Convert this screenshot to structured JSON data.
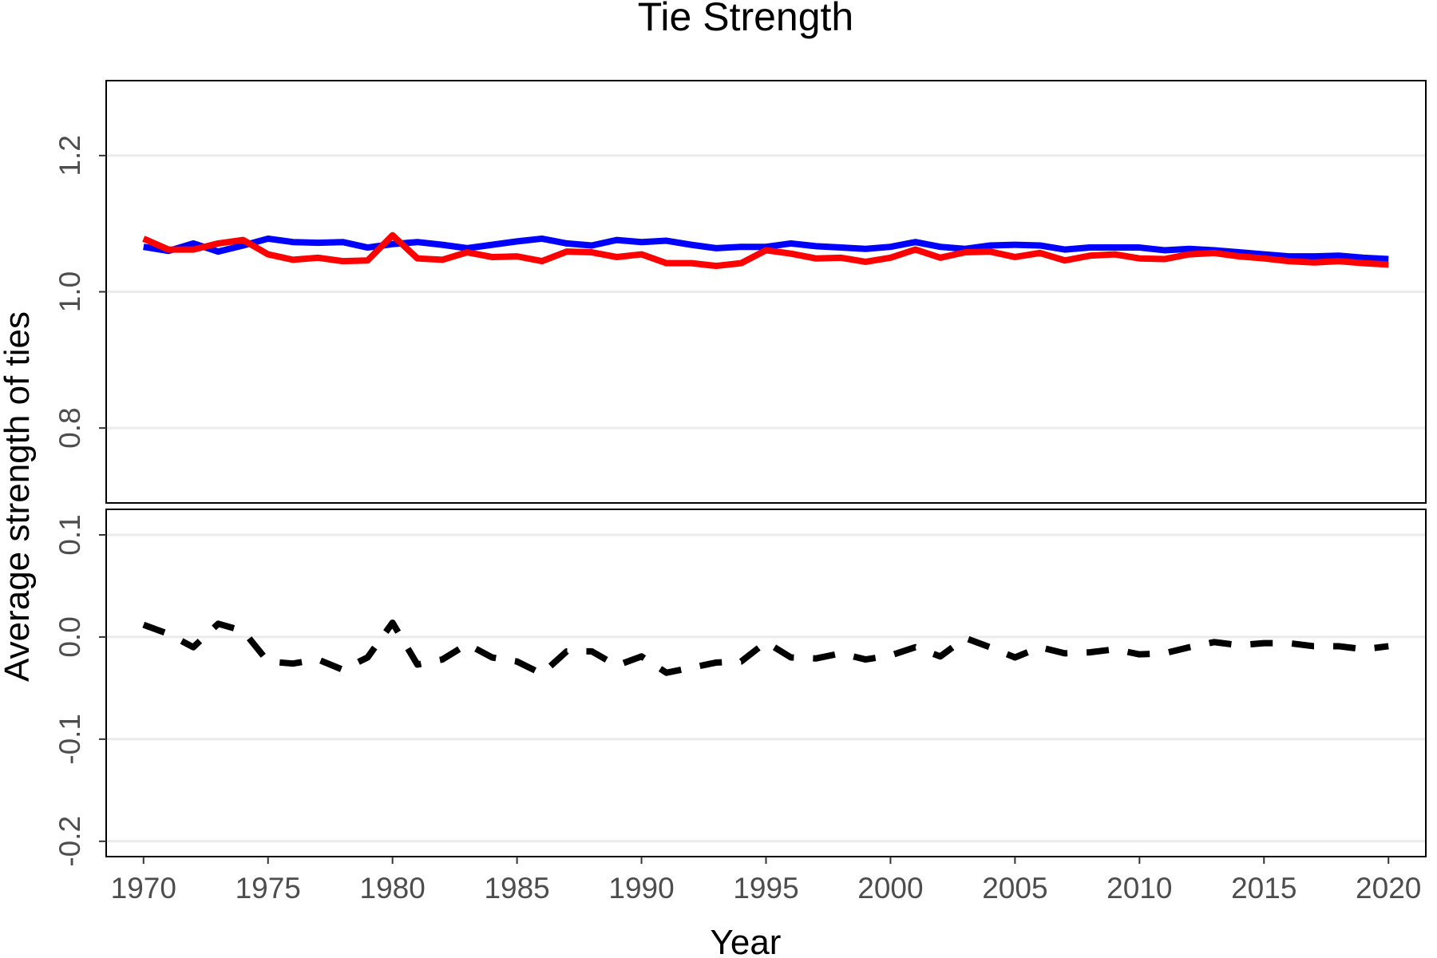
{
  "chart_data": {
    "type": "line",
    "title": "Tie Strength",
    "xlabel": "Year",
    "ylabel": "Average strength of ties",
    "x_ticks": [
      "1970",
      "1975",
      "1980",
      "1985",
      "1990",
      "1995",
      "2000",
      "2005",
      "2010",
      "2015",
      "2020"
    ],
    "xlim": [
      1968.5,
      2021.5
    ],
    "panels": [
      {
        "name": "top",
        "ylim": [
          0.69,
          1.31
        ],
        "y_ticks": [
          "0.8",
          "1.0",
          "1.2"
        ],
        "y_tick_values": [
          0.8,
          1.0,
          1.2
        ],
        "grid": true
      },
      {
        "name": "bottom",
        "ylim": [
          -0.215,
          0.125
        ],
        "y_ticks": [
          "-0.2",
          "-0.1",
          "0.0",
          "0.1"
        ],
        "y_tick_values": [
          -0.2,
          -0.1,
          0.0,
          0.1
        ],
        "grid": true
      }
    ],
    "x": [
      1970,
      1971,
      1972,
      1973,
      1974,
      1975,
      1976,
      1977,
      1978,
      1979,
      1980,
      1981,
      1982,
      1983,
      1984,
      1985,
      1986,
      1987,
      1988,
      1989,
      1990,
      1991,
      1992,
      1993,
      1994,
      1995,
      1996,
      1997,
      1998,
      1999,
      2000,
      2001,
      2002,
      2003,
      2004,
      2005,
      2006,
      2007,
      2008,
      2009,
      2010,
      2011,
      2012,
      2013,
      2014,
      2015,
      2016,
      2017,
      2018,
      2019,
      2020
    ],
    "series": [
      {
        "panel": "top",
        "color": "#0000ff",
        "dash": "solid",
        "values": [
          1.066,
          1.06,
          1.071,
          1.059,
          1.068,
          1.078,
          1.073,
          1.072,
          1.073,
          1.065,
          1.07,
          1.073,
          1.069,
          1.064,
          1.069,
          1.074,
          1.078,
          1.071,
          1.068,
          1.076,
          1.073,
          1.075,
          1.069,
          1.064,
          1.066,
          1.066,
          1.071,
          1.067,
          1.065,
          1.063,
          1.066,
          1.073,
          1.066,
          1.063,
          1.068,
          1.069,
          1.068,
          1.062,
          1.065,
          1.065,
          1.065,
          1.061,
          1.063,
          1.061,
          1.058,
          1.055,
          1.052,
          1.052,
          1.053,
          1.05,
          1.048
        ]
      },
      {
        "panel": "top",
        "color": "#ff0000",
        "dash": "solid",
        "values": [
          1.078,
          1.062,
          1.062,
          1.071,
          1.076,
          1.055,
          1.047,
          1.05,
          1.045,
          1.046,
          1.083,
          1.049,
          1.047,
          1.058,
          1.051,
          1.052,
          1.045,
          1.059,
          1.058,
          1.051,
          1.055,
          1.042,
          1.042,
          1.038,
          1.042,
          1.061,
          1.056,
          1.049,
          1.05,
          1.044,
          1.05,
          1.062,
          1.05,
          1.058,
          1.059,
          1.051,
          1.057,
          1.046,
          1.053,
          1.055,
          1.049,
          1.048,
          1.055,
          1.057,
          1.052,
          1.049,
          1.045,
          1.043,
          1.045,
          1.042,
          1.04
        ]
      },
      {
        "panel": "bottom",
        "color": "#000000",
        "dash": "dashed",
        "values": [
          0.012,
          0.003,
          -0.01,
          0.013,
          0.006,
          -0.024,
          -0.026,
          -0.022,
          -0.032,
          -0.02,
          0.014,
          -0.027,
          -0.022,
          -0.007,
          -0.02,
          -0.024,
          -0.036,
          -0.014,
          -0.014,
          -0.028,
          -0.019,
          -0.035,
          -0.03,
          -0.025,
          -0.024,
          -0.005,
          -0.02,
          -0.021,
          -0.016,
          -0.022,
          -0.018,
          -0.01,
          -0.019,
          -0.001,
          -0.01,
          -0.02,
          -0.01,
          -0.016,
          -0.015,
          -0.012,
          -0.017,
          -0.016,
          -0.01,
          -0.005,
          -0.008,
          -0.006,
          -0.006,
          -0.009,
          -0.009,
          -0.012,
          -0.009
        ]
      }
    ],
    "colors": {
      "blue_series": "#0000ff",
      "red_series": "#ff0000",
      "black_series": "#000000",
      "grid": "#ebebeb",
      "tick_text": "#4d4d4d"
    }
  }
}
